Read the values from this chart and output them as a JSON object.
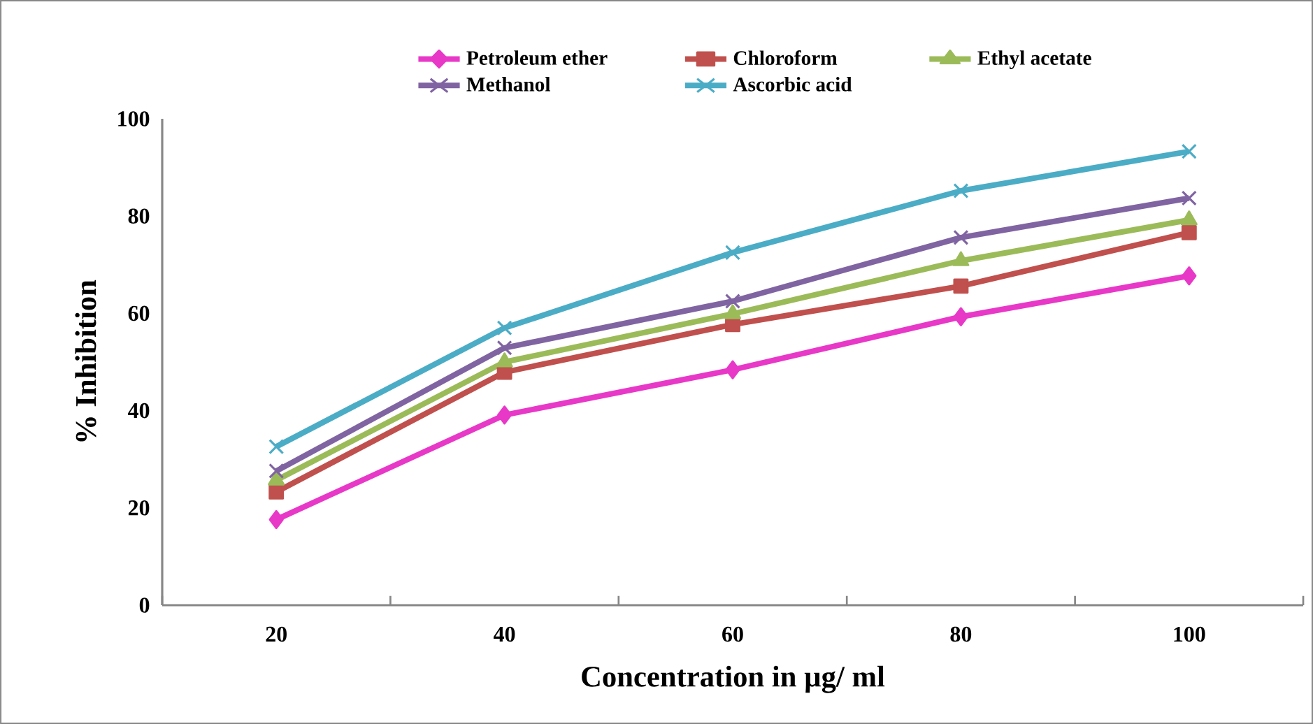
{
  "chart_data": {
    "type": "line",
    "xlabel": "Concentration in µg/ ml",
    "ylabel": "% Inhibition",
    "categories": [
      "20",
      "40",
      "60",
      "80",
      "100"
    ],
    "series": [
      {
        "name": "Petroleum ether",
        "color": "#e838c8",
        "marker": "diamond",
        "values": [
          17.6,
          39.1,
          48.4,
          59.3,
          67.7
        ]
      },
      {
        "name": "Chloroform",
        "color": "#c0504d",
        "marker": "square",
        "values": [
          23.3,
          47.9,
          57.7,
          65.6,
          76.6
        ]
      },
      {
        "name": "Ethyl acetate",
        "color": "#9bbb59",
        "marker": "triangle",
        "values": [
          25.7,
          50,
          59.9,
          70.8,
          79.2
        ]
      },
      {
        "name": "Methanol",
        "color": "#8064a2",
        "marker": "cross",
        "values": [
          27.6,
          52.9,
          62.5,
          75.6,
          83.7
        ]
      },
      {
        "name": "Ascorbic acid",
        "color": "#4bacc6",
        "marker": "cross",
        "values": [
          32.6,
          57,
          72.5,
          85.2,
          93.3
        ]
      }
    ],
    "ylim": [
      0,
      100
    ],
    "yticks": [
      0,
      20,
      40,
      60,
      80,
      100
    ],
    "grid": false,
    "legend": "top",
    "line_style": "solid"
  }
}
